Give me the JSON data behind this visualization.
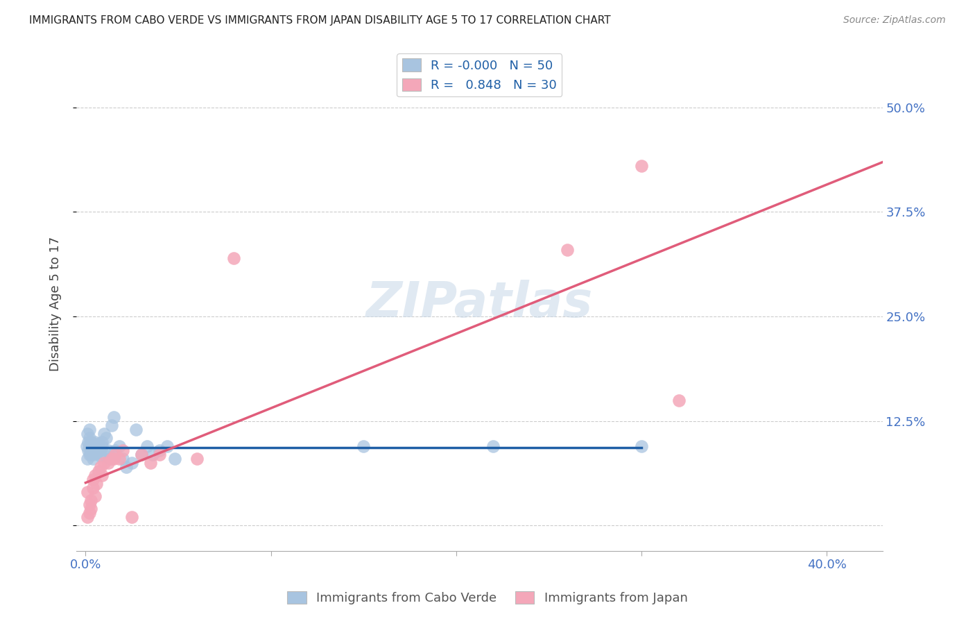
{
  "title": "IMMIGRANTS FROM CABO VERDE VS IMMIGRANTS FROM JAPAN DISABILITY AGE 5 TO 17 CORRELATION CHART",
  "source": "Source: ZipAtlas.com",
  "tick_color": "#4472c4",
  "ylabel": "Disability Age 5 to 17",
  "cabo_verde_color": "#a8c4e0",
  "japan_color": "#f4a7b9",
  "cabo_verde_line_color": "#1f5fa6",
  "japan_line_color": "#e05c7a",
  "cabo_verde_R": -0.0,
  "cabo_verde_N": 50,
  "japan_R": 0.848,
  "japan_N": 30,
  "watermark": "ZIPatlas",
  "cv_x": [
    0.0005,
    0.001,
    0.001,
    0.0015,
    0.0015,
    0.002,
    0.002,
    0.002,
    0.002,
    0.003,
    0.003,
    0.003,
    0.003,
    0.004,
    0.004,
    0.004,
    0.005,
    0.005,
    0.005,
    0.006,
    0.006,
    0.006,
    0.007,
    0.007,
    0.008,
    0.008,
    0.009,
    0.009,
    0.01,
    0.01,
    0.011,
    0.012,
    0.013,
    0.014,
    0.015,
    0.016,
    0.018,
    0.02,
    0.022,
    0.025,
    0.027,
    0.03,
    0.033,
    0.036,
    0.04,
    0.044,
    0.048,
    0.15,
    0.22,
    0.3
  ],
  "cv_y": [
    0.095,
    0.11,
    0.08,
    0.1,
    0.09,
    0.085,
    0.105,
    0.115,
    0.095,
    0.09,
    0.085,
    0.1,
    0.095,
    0.085,
    0.08,
    0.09,
    0.095,
    0.1,
    0.088,
    0.092,
    0.096,
    0.087,
    0.093,
    0.098,
    0.083,
    0.091,
    0.1,
    0.095,
    0.085,
    0.11,
    0.105,
    0.09,
    0.08,
    0.12,
    0.13,
    0.09,
    0.095,
    0.08,
    0.07,
    0.075,
    0.115,
    0.085,
    0.095,
    0.085,
    0.09,
    0.095,
    0.08,
    0.095,
    0.095,
    0.095
  ],
  "jp_x": [
    0.001,
    0.001,
    0.002,
    0.002,
    0.003,
    0.003,
    0.004,
    0.004,
    0.005,
    0.005,
    0.006,
    0.007,
    0.008,
    0.009,
    0.01,
    0.012,
    0.014,
    0.015,
    0.016,
    0.018,
    0.02,
    0.025,
    0.03,
    0.035,
    0.04,
    0.06,
    0.08,
    0.26,
    0.3,
    0.32
  ],
  "jp_y": [
    0.01,
    0.04,
    0.025,
    0.015,
    0.03,
    0.02,
    0.055,
    0.045,
    0.035,
    0.06,
    0.05,
    0.065,
    0.07,
    0.06,
    0.075,
    0.075,
    0.08,
    0.08,
    0.085,
    0.08,
    0.09,
    0.01,
    0.085,
    0.075,
    0.085,
    0.08,
    0.32,
    0.33,
    0.43,
    0.15
  ],
  "x_tick_positions": [
    0.0,
    0.1,
    0.2,
    0.3,
    0.4
  ],
  "x_tick_labels": [
    "0.0%",
    "",
    "",
    "",
    "40.0%"
  ],
  "y_tick_positions": [
    0.0,
    0.125,
    0.25,
    0.375,
    0.5
  ],
  "y_tick_labels": [
    "",
    "12.5%",
    "25.0%",
    "37.5%",
    "50.0%"
  ],
  "xlim": [
    -0.005,
    0.43
  ],
  "ylim": [
    -0.03,
    0.56
  ]
}
